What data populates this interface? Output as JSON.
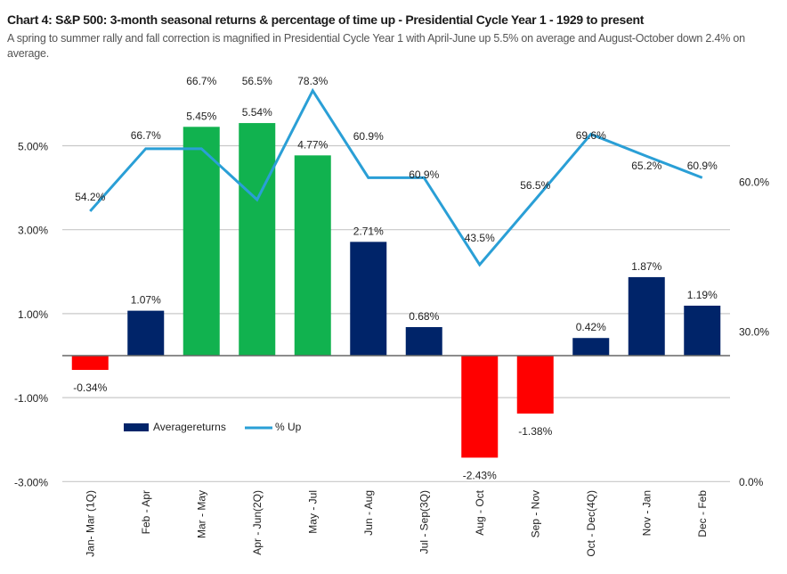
{
  "header": {
    "title": "Chart 4: S&P 500: 3-month seasonal returns & percentage of time up - Presidential Cycle Year 1 - 1929 to present",
    "subtitle": "A spring to summer rally and fall correction is magnified in Presidential Cycle Year 1 with April-June up 5.5% on average and August-October down 2.4% on average."
  },
  "colors": {
    "positive_bar": "#002469",
    "highlight_bar": "#11b24f",
    "negative_bar": "#ff0000",
    "line": "#2a9fd6",
    "grid": "#c8c8c8",
    "zero_line": "#666666"
  },
  "chart_data": {
    "type": "bar+line",
    "title": "Chart 4: S&P 500: 3-month seasonal returns & percentage of time up - Presidential Cycle Year 1 - 1929 to present",
    "categories": [
      "Jan- Mar (1Q)",
      "Feb - Apr",
      "Mar - May",
      "Apr - Jun(2Q)",
      "May - Jul",
      "Jun - Aug",
      "Jul - Sep(3Q)",
      "Aug - Oct",
      "Sep - Nov",
      "Oct - Dec(4Q)",
      "Nov - Jan",
      "Dec - Feb"
    ],
    "series": [
      {
        "name": "Averagereturns",
        "type": "bar",
        "axis": "left",
        "values": [
          -0.34,
          1.07,
          5.45,
          5.54,
          4.77,
          2.71,
          0.68,
          -2.43,
          -1.38,
          0.42,
          1.87,
          1.19
        ],
        "labels": [
          "-0.34%",
          "1.07%",
          "5.45%",
          "5.54%",
          "4.77%",
          "2.71%",
          "0.68%",
          "-2.43%",
          "-1.38%",
          "0.42%",
          "1.87%",
          "1.19%"
        ],
        "bar_colors": [
          "negative",
          "positive",
          "highlight",
          "highlight",
          "highlight",
          "positive",
          "positive",
          "negative",
          "negative",
          "positive",
          "positive",
          "positive"
        ]
      },
      {
        "name": "% Up",
        "type": "line",
        "axis": "right",
        "values": [
          54.2,
          66.7,
          66.7,
          56.5,
          78.3,
          60.9,
          60.9,
          43.5,
          56.5,
          69.6,
          65.2,
          60.9
        ],
        "labels": [
          "54.2%",
          "66.7%",
          "66.7%",
          "56.5%",
          "78.3%",
          "60.9%",
          "60.9%",
          "43.5%",
          "56.5%",
          "69.6%",
          "65.2%",
          "60.9%"
        ]
      }
    ],
    "left_axis": {
      "ylim": [
        -3.0,
        6.0
      ],
      "ticks": [
        -3,
        -1,
        1,
        3,
        5
      ],
      "tick_labels": [
        "-3.00%",
        "-1.00%",
        "1.00%",
        "3.00%",
        "5.00%"
      ],
      "grid": [
        -3,
        -2,
        -1,
        1,
        3,
        5
      ]
    },
    "right_axis": {
      "ylim": [
        0,
        80
      ],
      "ticks": [
        0,
        30,
        60
      ],
      "tick_labels": [
        "0.0%",
        "30.0%",
        "60.0%"
      ]
    },
    "grid": true,
    "legend": {
      "position": "lower-left inside",
      "entries": [
        "Averagereturns",
        "% Up"
      ]
    }
  }
}
